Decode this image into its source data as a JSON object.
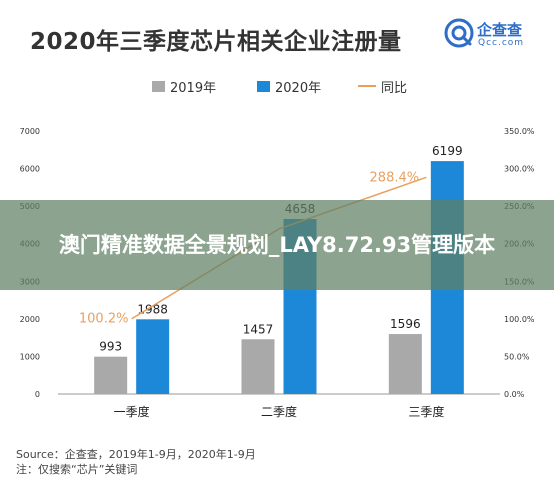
{
  "header": {
    "title": "2020年三季度芯片相关企业注册量",
    "logo_name": "企查查",
    "logo_domain": "Qcc.com"
  },
  "legend": {
    "items": [
      {
        "label": "2019年",
        "color": "#a9a9a9",
        "kind": "bar"
      },
      {
        "label": "2020年",
        "color": "#1e88d8",
        "kind": "bar"
      },
      {
        "label": "同比",
        "color": "#e8a060",
        "kind": "line"
      }
    ]
  },
  "chart_data": {
    "type": "bar",
    "title": "2020年三季度芯片相关企业注册量",
    "categories": [
      "一季度",
      "二季度",
      "三季度"
    ],
    "series": [
      {
        "name": "2019年",
        "type": "bar",
        "axis": "left",
        "values": [
          993,
          1457,
          1596
        ],
        "color": "#a9a9a9"
      },
      {
        "name": "2020年",
        "type": "bar",
        "axis": "left",
        "values": [
          1988,
          4658,
          6199
        ],
        "color": "#1e88d8"
      },
      {
        "name": "同比",
        "type": "line",
        "axis": "right",
        "values": [
          100.2,
          219.7,
          288.4
        ],
        "labels": [
          "100.2%",
          "",
          "288.4%"
        ],
        "color": "#e8a060"
      }
    ],
    "ylim": [
      0,
      7000
    ],
    "y_ticks": [
      0,
      1000,
      2000,
      3000,
      4000,
      5000,
      6000,
      7000
    ],
    "y2lim": [
      0,
      350
    ],
    "y2_ticks": [
      "0.0%",
      "50.0%",
      "100.0%",
      "150.0%",
      "200.0%",
      "250.0%",
      "300.0%",
      "350.0%"
    ],
    "grid": false,
    "legend_position": "top"
  },
  "footer": {
    "source": "Source：企查查，2019年1-9月，2020年1-9月",
    "note": "注：仅搜索“芯片”关键词"
  },
  "overlay": {
    "text": "澳门精准数据全景规划_LAY8.72.93管理版本"
  }
}
